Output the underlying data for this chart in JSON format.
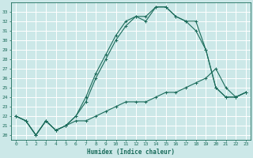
{
  "xlabel": "Humidex (Indice chaleur)",
  "bg_color": "#cce8e8",
  "grid_color": "#ffffff",
  "line_color": "#1a6b5a",
  "xlim": [
    -0.5,
    23.5
  ],
  "ylim": [
    19.5,
    34.0
  ],
  "xticks": [
    0,
    1,
    2,
    3,
    4,
    5,
    6,
    7,
    8,
    9,
    10,
    11,
    12,
    13,
    14,
    15,
    16,
    17,
    18,
    19,
    20,
    21,
    22,
    23
  ],
  "yticks": [
    20,
    21,
    22,
    23,
    24,
    25,
    26,
    27,
    28,
    29,
    30,
    31,
    32,
    33
  ],
  "line1_x": [
    0,
    1,
    2,
    3,
    4,
    5,
    6,
    7,
    8,
    9,
    10,
    11,
    12,
    13,
    14,
    15,
    16,
    17,
    18,
    19,
    20,
    21,
    22,
    23
  ],
  "line1_y": [
    22,
    21.5,
    20,
    21.5,
    20.5,
    21,
    21.5,
    21.5,
    22,
    22.5,
    23,
    23.5,
    23.5,
    23.5,
    24,
    24.5,
    24.5,
    25,
    25.5,
    26,
    27,
    25,
    24,
    24.5
  ],
  "line2_x": [
    0,
    1,
    2,
    3,
    4,
    5,
    6,
    7,
    8,
    9,
    10,
    11,
    12,
    13,
    14,
    15,
    16,
    17,
    18,
    19,
    20,
    21,
    22,
    23
  ],
  "line2_y": [
    22,
    21.5,
    20,
    21.5,
    20.5,
    21,
    22,
    23.5,
    26,
    28,
    30,
    31.5,
    32.5,
    32,
    33.5,
    33.5,
    32.5,
    32,
    32,
    29,
    25,
    24,
    24,
    24.5
  ],
  "line3_x": [
    0,
    1,
    2,
    3,
    4,
    5,
    6,
    7,
    8,
    9,
    10,
    11,
    12,
    13,
    14,
    15,
    16,
    17,
    18,
    19,
    20,
    21,
    22,
    23
  ],
  "line3_y": [
    22,
    21.5,
    20,
    21.5,
    20.5,
    21,
    22,
    24,
    26.5,
    28.5,
    30.5,
    32,
    32.5,
    32.5,
    33.5,
    33.5,
    32.5,
    32,
    31,
    29,
    25,
    24,
    24,
    24.5
  ]
}
